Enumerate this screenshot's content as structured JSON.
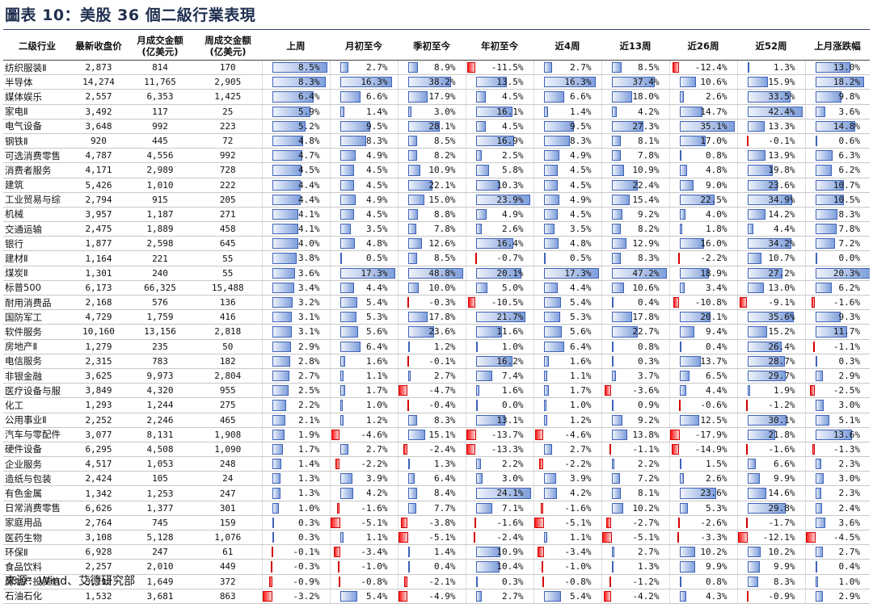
{
  "document": {
    "title": "圖表 10：美股 36 個二級行業表現",
    "source": "來源：Wind、艾德研究部"
  },
  "table": {
    "headers": [
      [
        "二级行业"
      ],
      [
        "最新收盘价"
      ],
      [
        "月成交金额",
        "(亿美元)"
      ],
      [
        "周成交金额",
        "(亿美元)"
      ],
      [
        "上周"
      ],
      [
        "月初至今"
      ],
      [
        "季初至今"
      ],
      [
        "年初至今"
      ],
      [
        "近4周"
      ],
      [
        "近13周"
      ],
      [
        "近26周"
      ],
      [
        "近52周"
      ],
      [
        "上月涨跌幅"
      ]
    ],
    "bar_colors": {
      "positive": "#7f9fdb",
      "negative": "#ff1a1a"
    },
    "rows": [
      [
        "纺织服装Ⅱ",
        "2,873",
        "814",
        "170",
        "8.5%",
        "2.7%",
        "8.9%",
        "-11.5%",
        "2.7%",
        "8.5%",
        "-12.4%",
        "1.3%",
        "13.0%"
      ],
      [
        "半导体",
        "14,274",
        "11,765",
        "2,905",
        "8.3%",
        "16.3%",
        "38.2%",
        "13.5%",
        "16.3%",
        "37.4%",
        "10.6%",
        "15.9%",
        "18.2%"
      ],
      [
        "媒体娱乐",
        "2,557",
        "6,353",
        "1,425",
        "6.4%",
        "6.6%",
        "17.9%",
        "4.5%",
        "6.6%",
        "18.0%",
        "2.6%",
        "33.5%",
        "9.8%"
      ],
      [
        "家电Ⅱ",
        "3,492",
        "117",
        "25",
        "5.9%",
        "1.4%",
        "3.0%",
        "16.1%",
        "1.4%",
        "4.2%",
        "14.7%",
        "42.4%",
        "3.6%"
      ],
      [
        "电气设备",
        "3,648",
        "992",
        "223",
        "5.2%",
        "9.5%",
        "28.1%",
        "4.5%",
        "9.5%",
        "27.3%",
        "35.1%",
        "13.3%",
        "14.8%"
      ],
      [
        "钢铁Ⅱ",
        "920",
        "445",
        "72",
        "4.8%",
        "8.3%",
        "8.5%",
        "16.9%",
        "8.3%",
        "8.1%",
        "17.0%",
        "-0.1%",
        "0.6%"
      ],
      [
        "可选消费零售",
        "4,787",
        "4,556",
        "992",
        "4.7%",
        "4.9%",
        "8.2%",
        "2.5%",
        "4.9%",
        "7.8%",
        "0.8%",
        "13.9%",
        "6.3%"
      ],
      [
        "消费者服务",
        "4,171",
        "2,989",
        "728",
        "4.5%",
        "4.5%",
        "10.9%",
        "5.8%",
        "4.5%",
        "10.9%",
        "4.8%",
        "19.8%",
        "6.2%"
      ],
      [
        "建筑",
        "5,426",
        "1,010",
        "222",
        "4.4%",
        "4.5%",
        "22.1%",
        "10.3%",
        "4.5%",
        "22.4%",
        "9.0%",
        "23.6%",
        "10.7%"
      ],
      [
        "工业贸易与综",
        "2,794",
        "915",
        "205",
        "4.4%",
        "4.9%",
        "15.0%",
        "23.9%",
        "4.9%",
        "15.4%",
        "22.5%",
        "34.9%",
        "10.5%"
      ],
      [
        "机械",
        "3,957",
        "1,187",
        "271",
        "4.1%",
        "4.5%",
        "8.8%",
        "4.9%",
        "4.5%",
        "9.2%",
        "4.0%",
        "14.2%",
        "8.3%"
      ],
      [
        "交通运输",
        "2,475",
        "1,889",
        "458",
        "4.1%",
        "3.5%",
        "7.8%",
        "2.6%",
        "3.5%",
        "8.2%",
        "1.8%",
        "4.4%",
        "7.8%"
      ],
      [
        "银行",
        "1,877",
        "2,598",
        "645",
        "4.0%",
        "4.8%",
        "12.6%",
        "16.4%",
        "4.8%",
        "12.9%",
        "16.0%",
        "34.2%",
        "7.2%"
      ],
      [
        "建材Ⅱ",
        "1,164",
        "221",
        "55",
        "3.8%",
        "0.5%",
        "8.5%",
        "-0.7%",
        "0.5%",
        "8.3%",
        "-2.2%",
        "10.7%",
        "0.0%"
      ],
      [
        "煤炭Ⅱ",
        "1,301",
        "240",
        "55",
        "3.6%",
        "17.3%",
        "48.8%",
        "20.1%",
        "17.3%",
        "47.2%",
        "18.9%",
        "27.2%",
        "20.3%"
      ],
      [
        "标普500",
        "6,173",
        "66,325",
        "15,488",
        "3.4%",
        "4.4%",
        "10.0%",
        "5.0%",
        "4.4%",
        "10.6%",
        "3.4%",
        "13.0%",
        "6.2%"
      ],
      [
        "耐用消费品",
        "2,168",
        "576",
        "136",
        "3.2%",
        "5.4%",
        "-0.3%",
        "-10.5%",
        "5.4%",
        "0.4%",
        "-10.8%",
        "-9.1%",
        "-1.6%"
      ],
      [
        "国防军工",
        "4,729",
        "1,759",
        "416",
        "3.1%",
        "5.3%",
        "17.8%",
        "21.7%",
        "5.3%",
        "17.8%",
        "20.1%",
        "35.6%",
        "9.3%"
      ],
      [
        "软件服务",
        "10,160",
        "13,156",
        "2,818",
        "3.1%",
        "5.6%",
        "23.6%",
        "11.6%",
        "5.6%",
        "22.7%",
        "9.4%",
        "15.2%",
        "11.7%"
      ],
      [
        "房地产Ⅱ",
        "1,279",
        "235",
        "50",
        "2.9%",
        "6.4%",
        "1.2%",
        "1.0%",
        "6.4%",
        "0.8%",
        "0.4%",
        "26.4%",
        "-1.1%"
      ],
      [
        "电信服务",
        "2,315",
        "783",
        "182",
        "2.8%",
        "1.6%",
        "-0.1%",
        "16.2%",
        "1.6%",
        "0.3%",
        "13.7%",
        "28.7%",
        "0.3%"
      ],
      [
        "非银金融",
        "3,625",
        "9,973",
        "2,804",
        "2.7%",
        "1.1%",
        "2.7%",
        "7.4%",
        "1.1%",
        "3.7%",
        "6.5%",
        "29.7%",
        "2.9%"
      ],
      [
        "医疗设备与服",
        "3,849",
        "4,320",
        "955",
        "2.5%",
        "1.7%",
        "-4.7%",
        "1.6%",
        "1.7%",
        "-3.6%",
        "4.4%",
        "1.9%",
        "-2.5%"
      ],
      [
        "化工",
        "1,293",
        "1,244",
        "275",
        "2.2%",
        "1.0%",
        "-0.4%",
        "0.0%",
        "1.0%",
        "0.9%",
        "-0.6%",
        "-1.2%",
        "3.0%"
      ],
      [
        "公用事业Ⅱ",
        "2,252",
        "2,246",
        "465",
        "2.1%",
        "1.2%",
        "8.3%",
        "13.1%",
        "1.2%",
        "9.2%",
        "12.5%",
        "30.1%",
        "5.1%"
      ],
      [
        "汽车与零配件",
        "3,077",
        "8,131",
        "1,908",
        "1.9%",
        "-4.6%",
        "15.1%",
        "-13.7%",
        "-4.6%",
        "13.8%",
        "-17.9%",
        "21.8%",
        "13.6%"
      ],
      [
        "硬件设备",
        "6,295",
        "4,508",
        "1,090",
        "1.7%",
        "2.7%",
        "-2.4%",
        "-13.3%",
        "2.7%",
        "-1.1%",
        "-14.9%",
        "-1.6%",
        "-1.3%"
      ],
      [
        "企业服务",
        "4,517",
        "1,053",
        "248",
        "1.4%",
        "-2.2%",
        "1.3%",
        "2.2%",
        "-2.2%",
        "2.2%",
        "1.5%",
        "6.6%",
        "2.3%"
      ],
      [
        "造纸与包装",
        "2,424",
        "105",
        "24",
        "1.3%",
        "3.9%",
        "6.4%",
        "3.0%",
        "3.9%",
        "7.2%",
        "2.6%",
        "9.9%",
        "3.0%"
      ],
      [
        "有色金属",
        "1,342",
        "1,253",
        "247",
        "1.3%",
        "4.2%",
        "8.4%",
        "24.1%",
        "4.2%",
        "8.1%",
        "23.6%",
        "14.6%",
        "2.3%"
      ],
      [
        "日常消费零售",
        "6,626",
        "1,377",
        "301",
        "1.0%",
        "-1.6%",
        "7.7%",
        "7.1%",
        "-1.6%",
        "10.2%",
        "5.3%",
        "29.8%",
        "2.4%"
      ],
      [
        "家庭用品",
        "2,764",
        "745",
        "159",
        "0.3%",
        "-5.1%",
        "-3.8%",
        "-1.6%",
        "-5.1%",
        "-2.7%",
        "-2.6%",
        "-1.7%",
        "3.6%"
      ],
      [
        "医药生物",
        "3,108",
        "5,128",
        "1,076",
        "0.3%",
        "1.1%",
        "-5.1%",
        "-2.4%",
        "1.1%",
        "-5.1%",
        "-3.3%",
        "-12.1%",
        "-4.5%"
      ],
      [
        "环保Ⅱ",
        "6,928",
        "247",
        "61",
        "-0.1%",
        "-3.4%",
        "1.4%",
        "10.9%",
        "-3.4%",
        "2.7%",
        "10.2%",
        "10.2%",
        "2.7%"
      ],
      [
        "食品饮料",
        "2,257",
        "2,010",
        "449",
        "-0.3%",
        "-1.0%",
        "0.4%",
        "10.4%",
        "-1.0%",
        "1.3%",
        "9.9%",
        "9.9%",
        "0.4%"
      ],
      [
        "房地产投资信",
        "3,712",
        "1,649",
        "372",
        "-0.9%",
        "-0.8%",
        "-2.1%",
        "0.3%",
        "-0.8%",
        "-1.2%",
        "0.8%",
        "8.3%",
        "1.0%"
      ],
      [
        "石油石化",
        "1,532",
        "3,681",
        "863",
        "-3.2%",
        "5.4%",
        "-4.9%",
        "2.7%",
        "5.4%",
        "-4.2%",
        "4.3%",
        "-0.9%",
        "2.9%"
      ]
    ]
  }
}
